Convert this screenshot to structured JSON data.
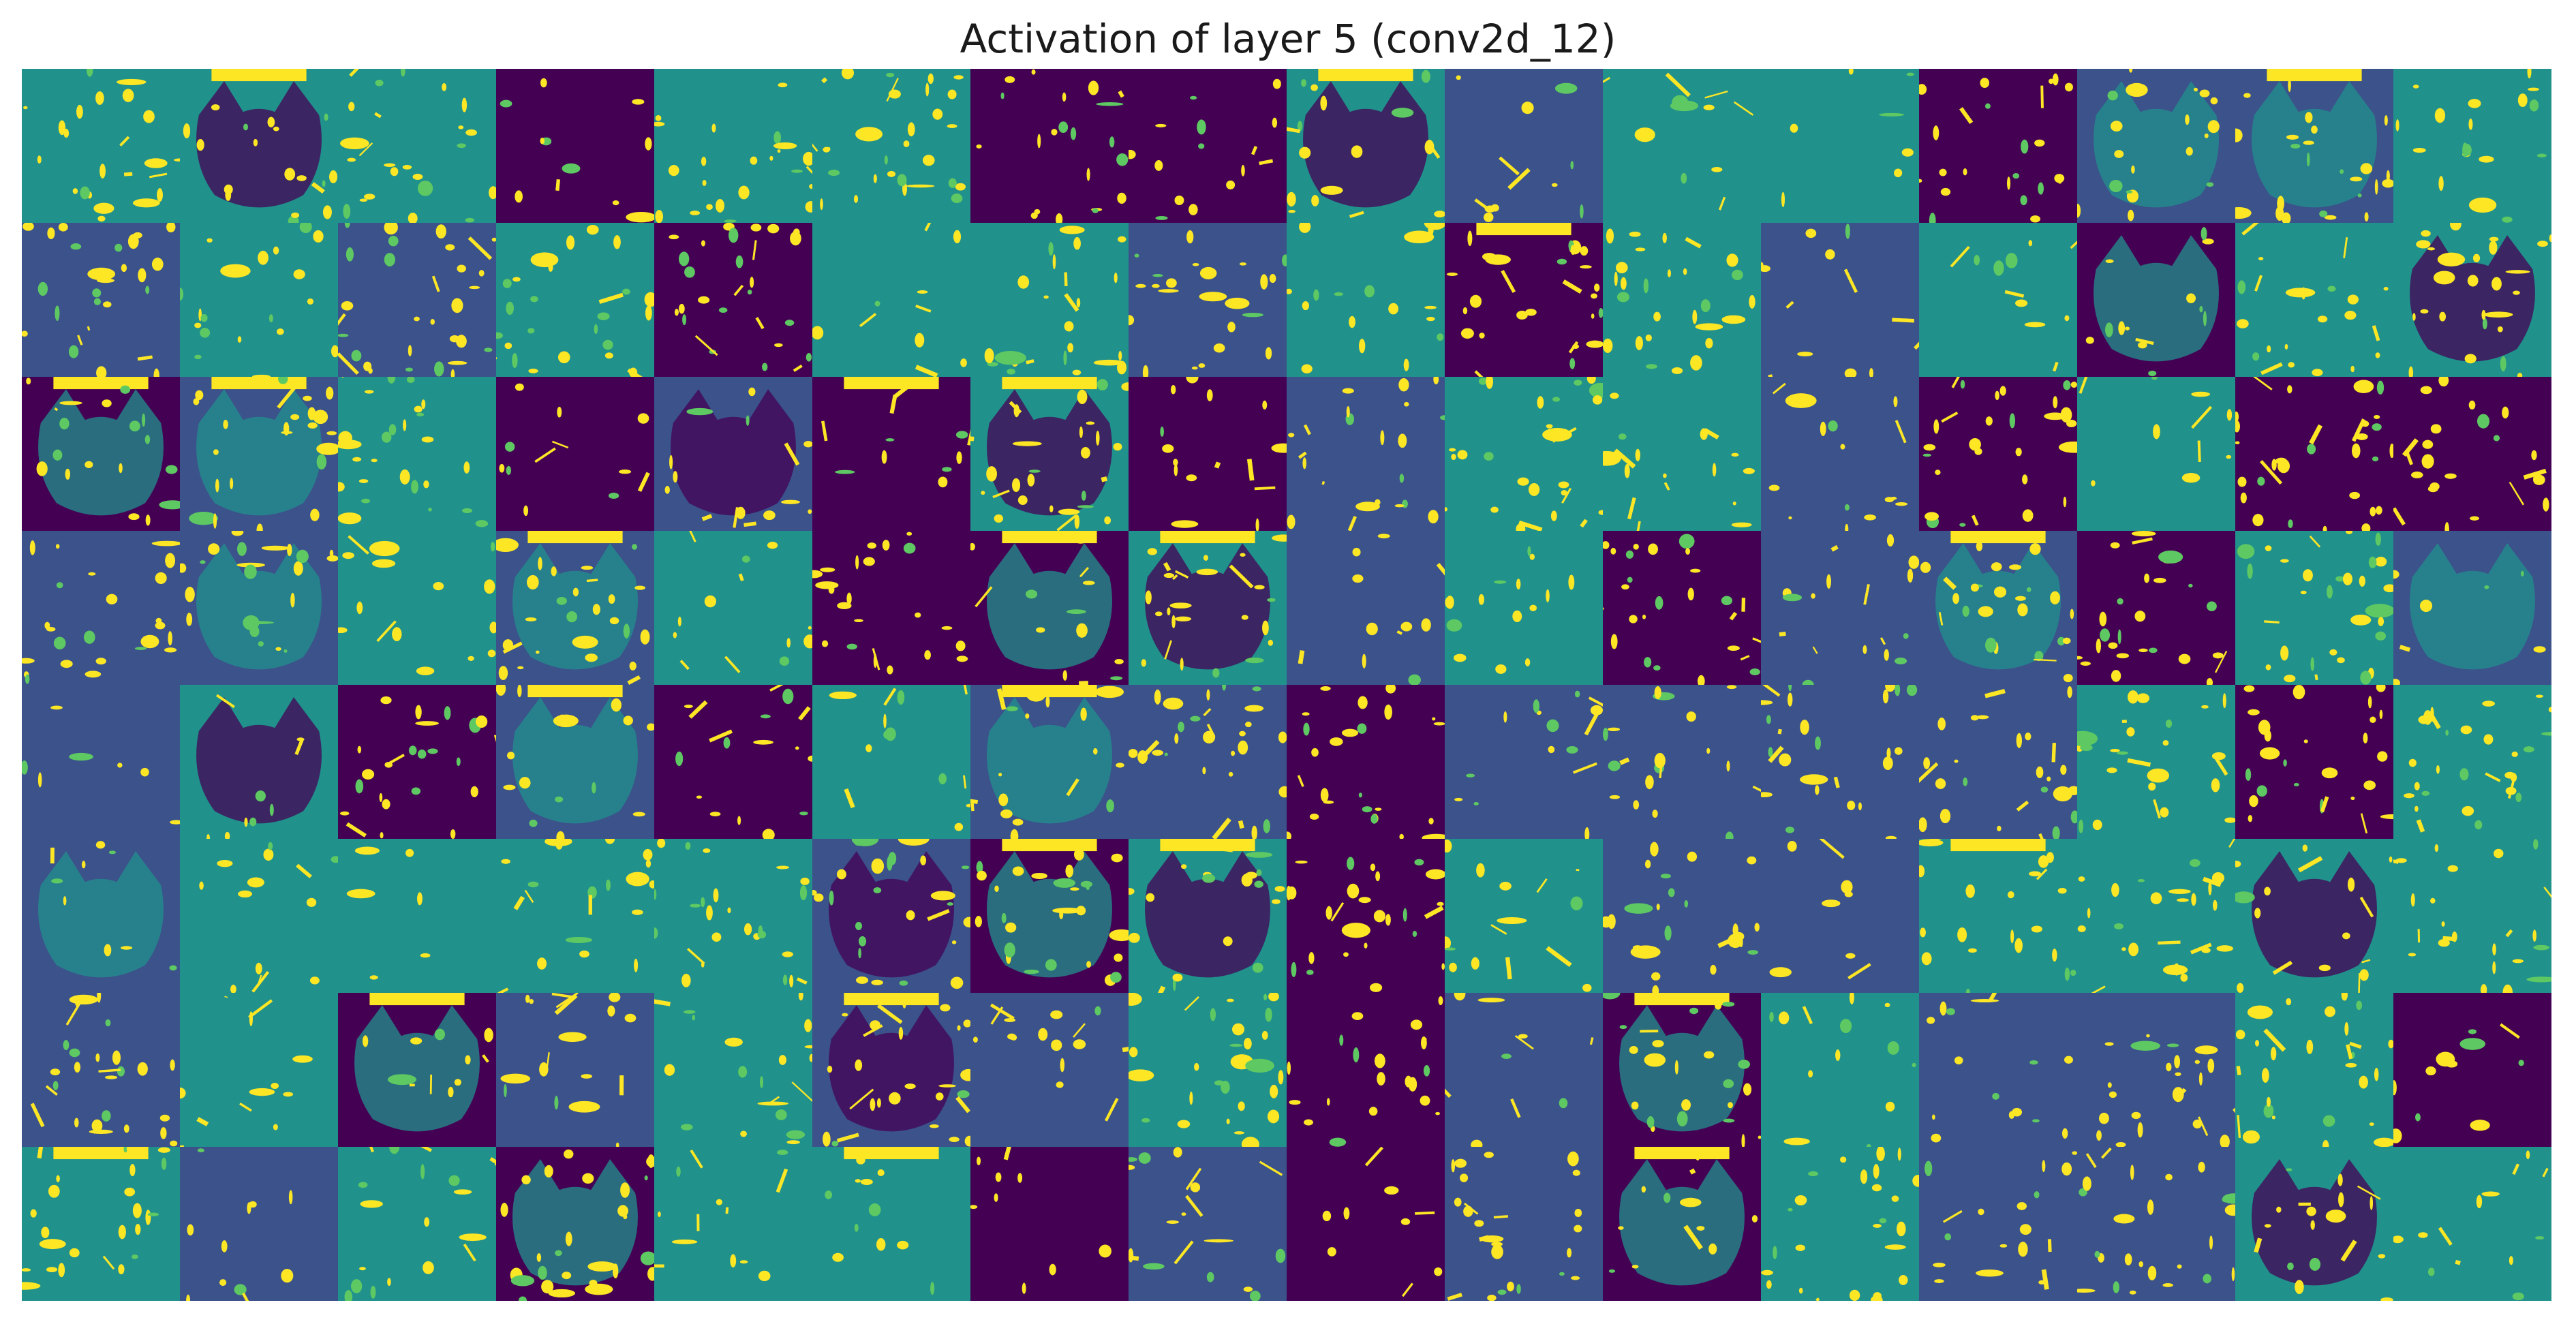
{
  "figure": {
    "title": "Activation of layer 5 (conv2d_12)"
  },
  "grid": {
    "rows": 8,
    "cols": 16,
    "colormap": "viridis",
    "colors": {
      "dark": "#440154",
      "blue": "#3b528b",
      "teal": "#21918c",
      "green": "#5ec962",
      "yellow": "#fde725"
    },
    "subject": "cat face feature maps"
  }
}
